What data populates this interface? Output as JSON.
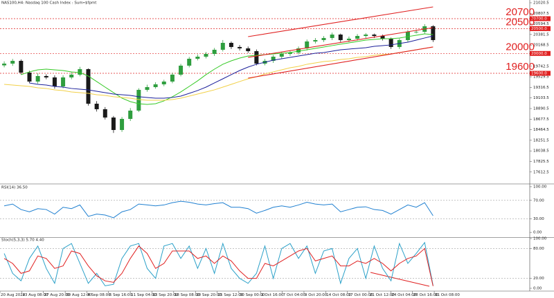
{
  "chart_data": [
    {
      "type": "candlestick",
      "title": "NAS100,H4: Nasdaq 100 Cash Index : Sum•$fpmt",
      "x": [
        0,
        1,
        2,
        3,
        4,
        5,
        6,
        7,
        8,
        9,
        10,
        11,
        12,
        13,
        14,
        15,
        16,
        17,
        18,
        19,
        20,
        21,
        22,
        23,
        24,
        25,
        26,
        27,
        28,
        29,
        30,
        31,
        32,
        33,
        34,
        35,
        36,
        37,
        38,
        39,
        40,
        41,
        42,
        43,
        44,
        45,
        46,
        47,
        48,
        49,
        50,
        51
      ],
      "open": [
        19760,
        19795,
        19851,
        19615,
        19434,
        19545,
        19517,
        19336,
        19517,
        19573,
        19684,
        18988,
        18877,
        18710,
        18459,
        18682,
        18849,
        19267,
        19322,
        19378,
        19434,
        19573,
        19754,
        19893,
        19935,
        19990,
        20074,
        20213,
        20130,
        20102,
        20046,
        19795,
        19851,
        19935,
        19990,
        20018,
        20102,
        20241,
        20269,
        20311,
        20380,
        20269,
        20297,
        20352,
        20380,
        20352,
        20297,
        20130,
        20269,
        20436,
        20436,
        20547
      ],
      "high": [
        19840,
        19890,
        19880,
        19650,
        19600,
        19580,
        19560,
        19560,
        19620,
        19730,
        19700,
        19040,
        18920,
        18740,
        18720,
        18900,
        19300,
        19370,
        19420,
        19470,
        19610,
        19790,
        19930,
        19980,
        20030,
        20110,
        20270,
        20240,
        20170,
        20140,
        20080,
        19890,
        19970,
        20030,
        20060,
        20140,
        20280,
        20310,
        20350,
        20420,
        20400,
        20340,
        20390,
        20410,
        20400,
        20380,
        20320,
        20300,
        20470,
        20480,
        20590,
        20570
      ],
      "low": [
        19720,
        19750,
        19580,
        19400,
        19390,
        19480,
        19290,
        19300,
        19480,
        19540,
        18950,
        18830,
        18670,
        18400,
        18420,
        18640,
        18820,
        19230,
        19290,
        19340,
        19400,
        19540,
        19720,
        19860,
        19900,
        19950,
        20040,
        20090,
        20060,
        20010,
        19760,
        19760,
        19810,
        19900,
        19950,
        19980,
        20060,
        20200,
        20230,
        20270,
        20230,
        20230,
        20260,
        20310,
        20310,
        20260,
        20090,
        20090,
        20230,
        20400,
        20400,
        20230
      ],
      "close": [
        19795,
        19851,
        19615,
        19434,
        19545,
        19517,
        19336,
        19517,
        19573,
        19684,
        18988,
        18877,
        18710,
        18459,
        18682,
        18849,
        19267,
        19322,
        19378,
        19434,
        19573,
        19754,
        19893,
        19935,
        19990,
        20074,
        20213,
        20130,
        20102,
        20046,
        19795,
        19851,
        19935,
        19990,
        20018,
        20102,
        20241,
        20269,
        20311,
        20380,
        20269,
        20297,
        20352,
        20380,
        20352,
        20297,
        20130,
        20269,
        20436,
        20436,
        20547,
        20269
      ],
      "up_color": "#2f9e3f",
      "down_color": "#1a1a1a",
      "series": [
        {
          "color": "#34c924",
          "values": [
            null,
            null,
            19573,
            19629,
            19670,
            19684,
            19670,
            19656,
            19629,
            19615,
            19545,
            19434,
            19322,
            19211,
            19100,
            19030,
            18988,
            18974,
            18988,
            19044,
            19128,
            19225,
            19336,
            19448,
            19573,
            19684,
            19782,
            19851,
            19907,
            19949,
            19963,
            19977,
            19990,
            20004,
            20018,
            20046,
            20074,
            20102,
            20130,
            20158,
            20186,
            20213,
            20241,
            20269,
            20283,
            20297,
            20297,
            20311,
            20339,
            20366,
            20394,
            20380
          ]
        },
        {
          "color": "#1b1f9a",
          "values": [
            null,
            null,
            null,
            19406,
            19378,
            19364,
            19336,
            19322,
            19295,
            19281,
            19267,
            19239,
            19211,
            19183,
            19169,
            19155,
            19128,
            19114,
            19100,
            19100,
            19114,
            19141,
            19197,
            19253,
            19322,
            19406,
            19489,
            19573,
            19656,
            19726,
            19782,
            19823,
            19865,
            19893,
            19921,
            19949,
            19977,
            20004,
            20018,
            20046,
            20074,
            20088,
            20102,
            20116,
            20144,
            20158,
            20172,
            20200,
            20227,
            20269,
            20311,
            20352
          ]
        },
        {
          "color": "#f2d046",
          "values": [
            19378,
            19364,
            19350,
            19336,
            19308,
            19295,
            19267,
            19253,
            19225,
            19211,
            19197,
            19169,
            19155,
            19128,
            19114,
            19100,
            19072,
            19058,
            19058,
            19058,
            19072,
            19100,
            19141,
            19183,
            19225,
            19267,
            19322,
            19378,
            19434,
            19489,
            19531,
            19587,
            19629,
            19670,
            19712,
            19740,
            19782,
            19809,
            19837,
            19851,
            19879,
            19893,
            19921,
            19935,
            19963,
            19977,
            19990,
            20018,
            20046,
            20074,
            20102,
            20130
          ]
        }
      ],
      "levels": [
        {
          "value": 20700,
          "label": "20700.0"
        },
        {
          "value": 20500,
          "label": "20500.0"
        },
        {
          "value": 20000,
          "label": "20000.0"
        },
        {
          "value": 19600,
          "label": "19600.0"
        }
      ],
      "level_color": "#e02020",
      "channels": [
        {
          "x": [
            29,
            51
          ],
          "values": [
            20338,
            20937
          ]
        },
        {
          "x": [
            29,
            51
          ],
          "values": [
            19921,
            20519
          ]
        },
        {
          "x": [
            29,
            51
          ],
          "values": [
            19503,
            20130
          ]
        }
      ],
      "channel_color": "#e02020",
      "xlim": [
        -0.5,
        62.5
      ],
      "ylim": [
        17387,
        21076
      ],
      "yticks": [
        21020.5,
        20807.5,
        20594.5,
        20381.5,
        20168.5,
        19742.5,
        19529.5,
        19316.5,
        19103.5,
        18890.5,
        18677.5,
        18464.5,
        18251.5,
        18038.5,
        17825.5,
        17612.5
      ]
    },
    {
      "type": "line",
      "title": "RSI(14) 36.50",
      "x": [
        0,
        1,
        2,
        3,
        4,
        5,
        6,
        7,
        8,
        9,
        10,
        11,
        12,
        13,
        14,
        15,
        16,
        17,
        18,
        19,
        20,
        21,
        22,
        23,
        24,
        25,
        26,
        27,
        28,
        29,
        30,
        31,
        32,
        33,
        34,
        35,
        36,
        37,
        38,
        39,
        40,
        41,
        42,
        43,
        44,
        45,
        46,
        47,
        48,
        49,
        50,
        51
      ],
      "series": [
        {
          "color": "#1e7fd0",
          "values": [
            58,
            62,
            50,
            45,
            52,
            50,
            40,
            55,
            52,
            60,
            35,
            40,
            38,
            32,
            45,
            50,
            62,
            60,
            58,
            60,
            65,
            68,
            66,
            62,
            60,
            63,
            65,
            55,
            55,
            52,
            42,
            48,
            55,
            58,
            55,
            60,
            66,
            62,
            60,
            62,
            45,
            50,
            55,
            56,
            50,
            48,
            40,
            50,
            60,
            55,
            65,
            36.5
          ]
        }
      ],
      "levels": [
        70,
        30
      ],
      "level_color": "#888888",
      "xlim": [
        -0.5,
        62.5
      ],
      "ylim": [
        -10.4,
        104.5
      ],
      "yticks": [
        {
          "value": 100,
          "label": "100.00"
        },
        {
          "value": 70,
          "label": "70.00"
        },
        {
          "value": 30,
          "label": "30.00"
        },
        {
          "value": 0,
          "label": "0.00"
        }
      ]
    },
    {
      "type": "line",
      "title": "Stoch(5,3,3) 5.70 4.40",
      "x": [
        0,
        1,
        2,
        3,
        4,
        5,
        6,
        7,
        8,
        9,
        10,
        11,
        12,
        13,
        14,
        15,
        16,
        17,
        18,
        19,
        20,
        21,
        22,
        23,
        24,
        25,
        26,
        27,
        28,
        29,
        30,
        31,
        32,
        33,
        34,
        35,
        36,
        37,
        38,
        39,
        40,
        41,
        42,
        43,
        44,
        45,
        46,
        47,
        48,
        49,
        50,
        51
      ],
      "series": [
        {
          "color": "#2aa0c8",
          "values": [
            70,
            30,
            15,
            60,
            85,
            40,
            10,
            80,
            90,
            50,
            10,
            30,
            5,
            8,
            60,
            85,
            90,
            40,
            20,
            85,
            90,
            60,
            85,
            40,
            80,
            30,
            90,
            40,
            20,
            10,
            30,
            85,
            20,
            80,
            90,
            60,
            85,
            30,
            75,
            80,
            10,
            60,
            80,
            20,
            85,
            40,
            15,
            90,
            50,
            70,
            92,
            5.7
          ]
        },
        {
          "color": "#e02020",
          "values": [
            60,
            50,
            30,
            35,
            65,
            60,
            40,
            45,
            75,
            70,
            45,
            25,
            15,
            12,
            30,
            60,
            85,
            70,
            40,
            50,
            75,
            75,
            75,
            60,
            65,
            50,
            65,
            55,
            35,
            20,
            20,
            50,
            45,
            55,
            65,
            75,
            80,
            55,
            60,
            65,
            45,
            45,
            55,
            50,
            60,
            50,
            35,
            50,
            60,
            65,
            80,
            4.4
          ]
        }
      ],
      "levels": [
        80,
        20
      ],
      "level_color": "#888888",
      "xlim": [
        -0.5,
        62.5
      ],
      "ylim": [
        -5.6,
        101.4
      ],
      "yticks": [
        {
          "value": 100,
          "label": "100.00"
        },
        {
          "value": 80,
          "label": "80.00"
        },
        {
          "value": 20,
          "label": "20.00"
        },
        {
          "value": 0,
          "label": "0.00"
        }
      ],
      "xticks": [
        {
          "value": -0.5,
          "label": "20 Aug 2024"
        },
        {
          "value": 2.08,
          "label": "23 Aug 08:00"
        },
        {
          "value": 4.66,
          "label": "27 Aug 20:00"
        },
        {
          "value": 7.25,
          "label": "30 Aug 12:00"
        },
        {
          "value": 9.83,
          "label": "4 Sep 08:00"
        },
        {
          "value": 12.41,
          "label": "6 Sep 16:00"
        },
        {
          "value": 14.99,
          "label": "11 Sep 04:00"
        },
        {
          "value": 17.57,
          "label": "13 Sep 20:00"
        },
        {
          "value": 20.16,
          "label": "18 Sep 08:00"
        },
        {
          "value": 22.74,
          "label": "20 Sep 20:00"
        },
        {
          "value": 25.32,
          "label": "25 Sep 12:00"
        },
        {
          "value": 27.9,
          "label": "30 Sep 00:00"
        },
        {
          "value": 30.48,
          "label": "2 Oct 16:00"
        },
        {
          "value": 33.07,
          "label": "7 Oct 04:00"
        },
        {
          "value": 35.65,
          "label": "9 Oct 20:00"
        },
        {
          "value": 38.23,
          "label": "14 Oct 08:00"
        },
        {
          "value": 40.81,
          "label": "17 Oct 00:00"
        },
        {
          "value": 43.39,
          "label": "21 Oct 12:00"
        },
        {
          "value": 45.98,
          "label": "24 Oct 04:00"
        },
        {
          "value": 48.56,
          "label": "28 Oct 16:00"
        },
        {
          "value": 51.14,
          "label": "31 Oct 08:00"
        }
      ]
    }
  ]
}
